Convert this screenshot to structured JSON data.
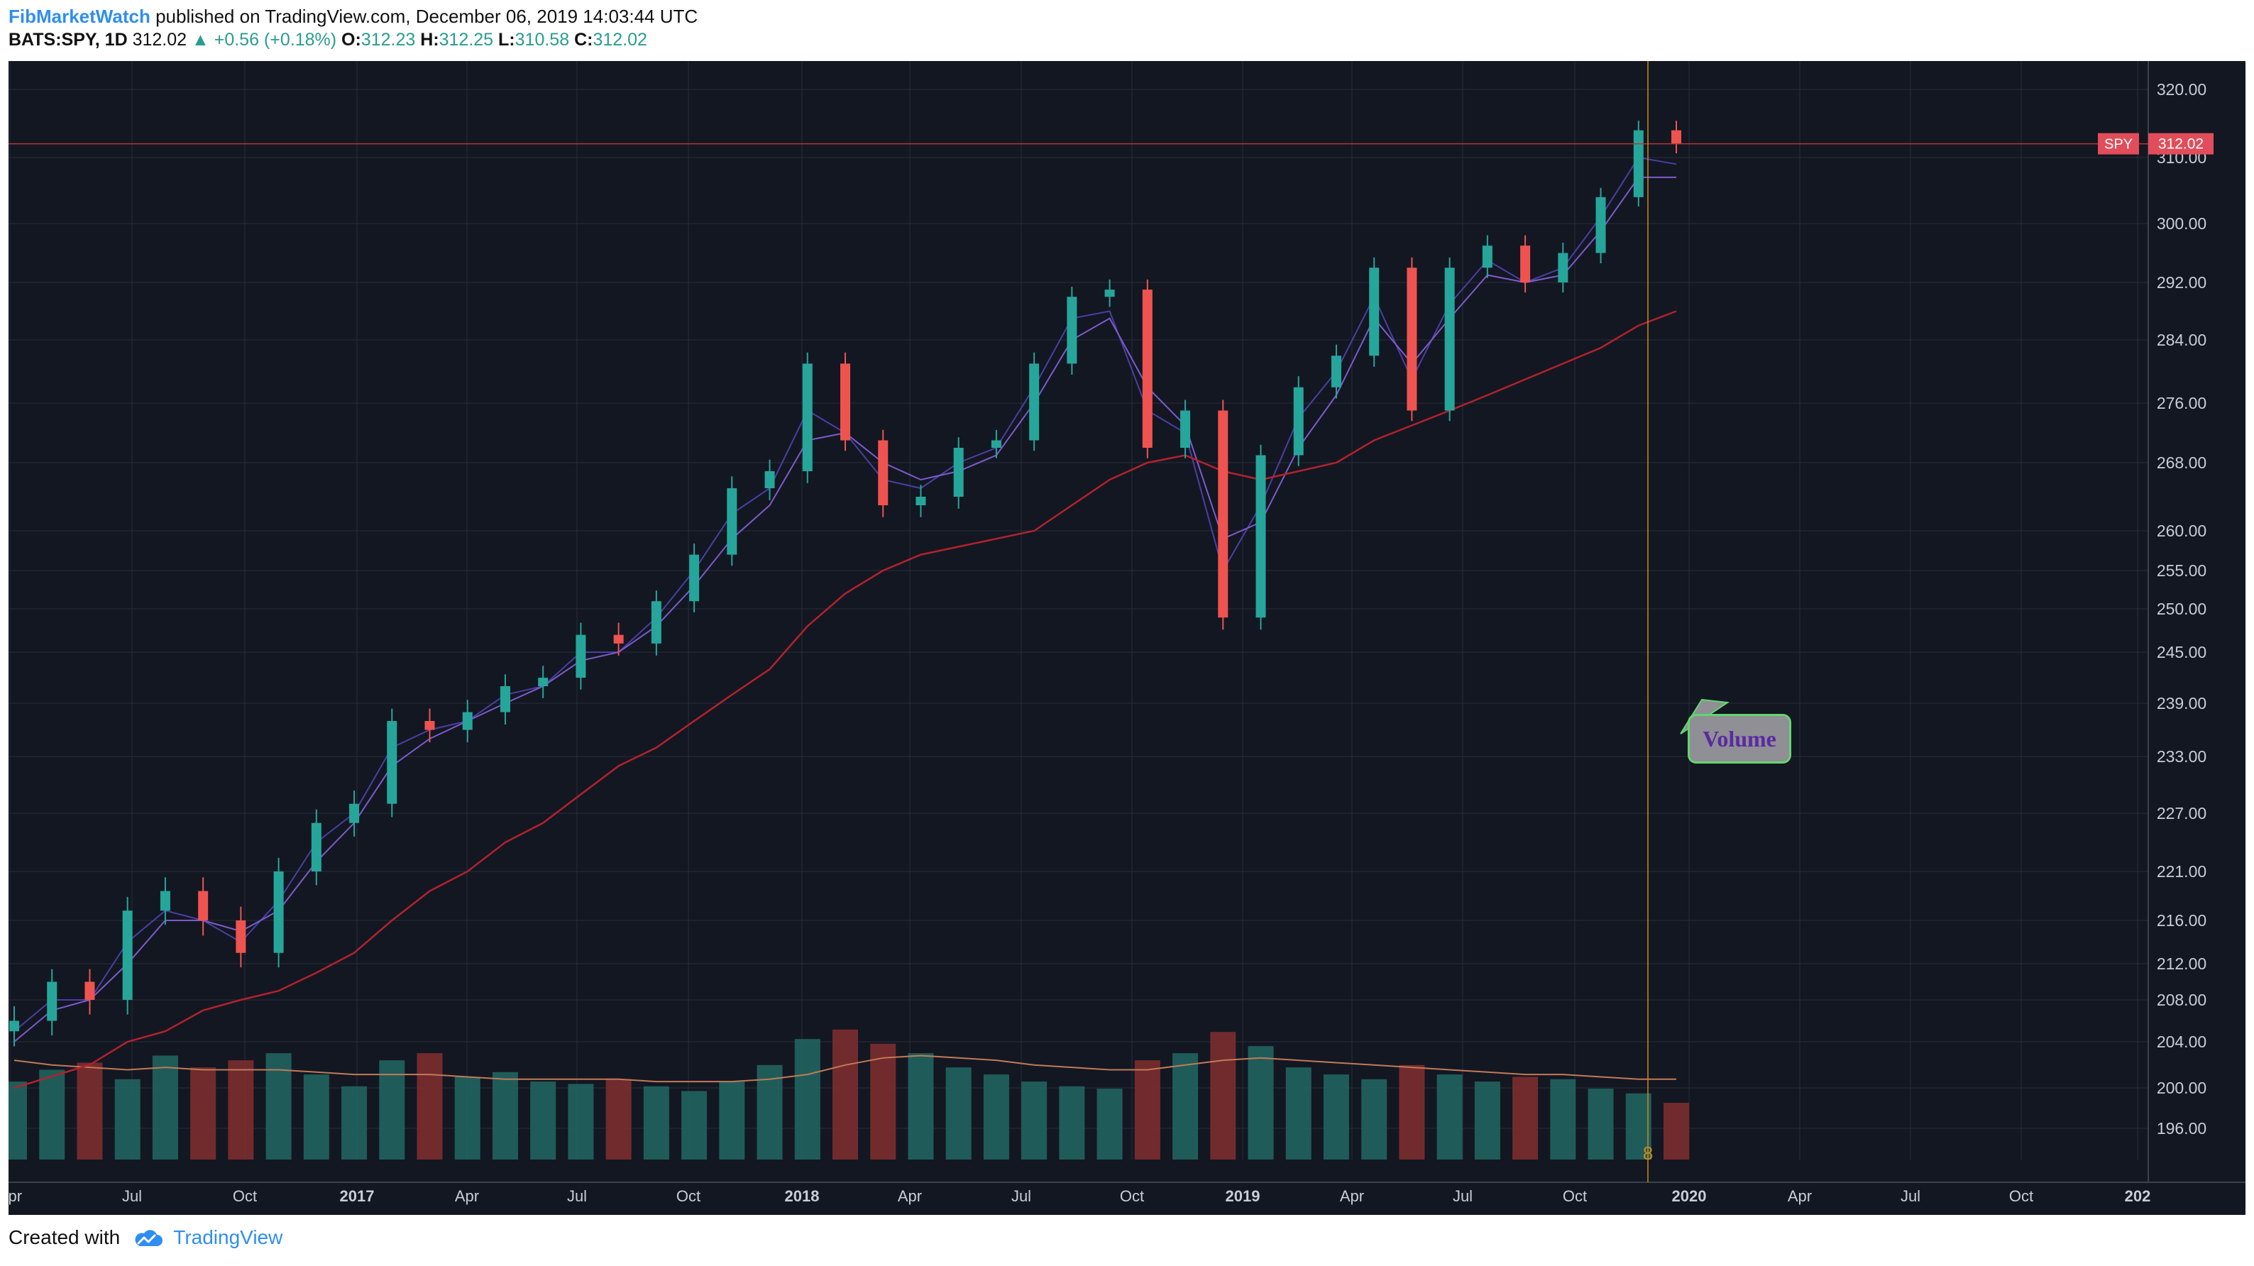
{
  "header": {
    "publisher": "FibMarketWatch",
    "published_text": "published on TradingView.com, December 06, 2019 14:03:44 UTC",
    "symbol": "BATS:SPY, 1D",
    "price": "312.02",
    "change": "+0.56 (+0.18%)",
    "o_label": "O:",
    "o_value": "312.23",
    "h_label": "H:",
    "h_value": "312.25",
    "l_label": "L:",
    "l_value": "310.58",
    "c_label": "C:",
    "c_value": "312.02"
  },
  "chart_data": {
    "type": "line",
    "title": "",
    "symbol_tag": "SPY",
    "last_price_tag": "312.02",
    "x": [
      "2016-04",
      "2016-07",
      "2016-10",
      "2017-01",
      "2017-04",
      "2017-07",
      "2017-10",
      "2018-01",
      "2018-04",
      "2018-07",
      "2018-10",
      "2019-01",
      "2019-04",
      "2019-07",
      "2019-10",
      "2019-12"
    ],
    "y_ticks": [
      320,
      310,
      300,
      292,
      284,
      276,
      268,
      260,
      255,
      250,
      245,
      239,
      233,
      227,
      221,
      216,
      212,
      208,
      204,
      200,
      196
    ],
    "y_tick_labels": [
      "320.00",
      "310.00",
      "300.00",
      "292.00",
      "284.00",
      "276.00",
      "268.00",
      "260.00",
      "255.00",
      "250.00",
      "245.00",
      "239.00",
      "233.00",
      "227.00",
      "221.00",
      "216.00",
      "212.00",
      "208.00",
      "204.00",
      "200.00",
      "196.00"
    ],
    "x_tick_labels": [
      "Apr",
      "Jul",
      "Oct",
      "2017",
      "Apr",
      "Jul",
      "Oct",
      "2018",
      "Apr",
      "Jul",
      "Oct",
      "2019",
      "Apr",
      "Jul",
      "Oct",
      "2020",
      "Apr",
      "Jul",
      "Oct",
      "202"
    ],
    "price_series": [
      {
        "x": "2016-04",
        "close": 206
      },
      {
        "x": "2016-05",
        "close": 210
      },
      {
        "x": "2016-06",
        "close": 208
      },
      {
        "x": "2016-07",
        "close": 217
      },
      {
        "x": "2016-08",
        "close": 219
      },
      {
        "x": "2016-09",
        "close": 216
      },
      {
        "x": "2016-10",
        "close": 213
      },
      {
        "x": "2016-11",
        "close": 221
      },
      {
        "x": "2016-12",
        "close": 226
      },
      {
        "x": "2017-01",
        "close": 228
      },
      {
        "x": "2017-02",
        "close": 237
      },
      {
        "x": "2017-03",
        "close": 236
      },
      {
        "x": "2017-04",
        "close": 238
      },
      {
        "x": "2017-05",
        "close": 241
      },
      {
        "x": "2017-06",
        "close": 242
      },
      {
        "x": "2017-07",
        "close": 247
      },
      {
        "x": "2017-08",
        "close": 246
      },
      {
        "x": "2017-09",
        "close": 251
      },
      {
        "x": "2017-10",
        "close": 257
      },
      {
        "x": "2017-11",
        "close": 265
      },
      {
        "x": "2017-12",
        "close": 267
      },
      {
        "x": "2018-01",
        "close": 281
      },
      {
        "x": "2018-02",
        "close": 271
      },
      {
        "x": "2018-03",
        "close": 263
      },
      {
        "x": "2018-04",
        "close": 264
      },
      {
        "x": "2018-05",
        "close": 270
      },
      {
        "x": "2018-06",
        "close": 271
      },
      {
        "x": "2018-07",
        "close": 281
      },
      {
        "x": "2018-08",
        "close": 290
      },
      {
        "x": "2018-09",
        "close": 291
      },
      {
        "x": "2018-10",
        "close": 270
      },
      {
        "x": "2018-11",
        "close": 275
      },
      {
        "x": "2018-12",
        "close": 249
      },
      {
        "x": "2019-01",
        "close": 269
      },
      {
        "x": "2019-02",
        "close": 278
      },
      {
        "x": "2019-03",
        "close": 282
      },
      {
        "x": "2019-04",
        "close": 294
      },
      {
        "x": "2019-05",
        "close": 275
      },
      {
        "x": "2019-06",
        "close": 294
      },
      {
        "x": "2019-07",
        "close": 297
      },
      {
        "x": "2019-08",
        "close": 292
      },
      {
        "x": "2019-09",
        "close": 296
      },
      {
        "x": "2019-10",
        "close": 304
      },
      {
        "x": "2019-11",
        "close": 314
      },
      {
        "x": "2019-12",
        "close": 312.02
      }
    ],
    "ma_series": [
      {
        "name": "",
        "color": "#4b3fa3",
        "values": [
          205,
          208,
          208,
          214,
          217,
          216,
          214,
          218,
          224,
          227,
          234,
          236,
          237,
          240,
          241,
          245,
          245,
          249,
          255,
          262,
          265,
          275,
          272,
          266,
          265,
          268,
          270,
          278,
          287,
          288,
          275,
          272,
          255,
          263,
          274,
          280,
          290,
          279,
          289,
          295,
          292,
          294,
          301,
          310,
          309
        ]
      },
      {
        "name": "",
        "color": "#7d5bcc",
        "values": [
          204,
          207,
          208,
          212,
          216,
          216,
          215,
          217,
          222,
          226,
          232,
          235,
          237,
          239,
          241,
          244,
          245,
          248,
          253,
          259,
          263,
          271,
          272,
          268,
          266,
          267,
          269,
          276,
          284,
          287,
          278,
          273,
          259,
          261,
          270,
          277,
          287,
          281,
          287,
          293,
          292,
          293,
          299,
          307,
          307
        ]
      },
      {
        "name": "",
        "color": "#b3222c",
        "values": [
          200,
          201,
          202,
          204,
          205,
          207,
          208,
          209,
          211,
          213,
          216,
          219,
          221,
          224,
          226,
          229,
          232,
          234,
          237,
          240,
          243,
          248,
          252,
          255,
          257,
          258,
          259,
          260,
          263,
          266,
          268,
          269,
          267,
          266,
          267,
          268,
          271,
          273,
          275,
          277,
          279,
          281,
          283,
          286,
          288
        ]
      }
    ],
    "volume_relative": [
      0.33,
      0.38,
      0.41,
      0.34,
      0.44,
      0.39,
      0.42,
      0.45,
      0.36,
      0.31,
      0.42,
      0.45,
      0.35,
      0.37,
      0.33,
      0.32,
      0.34,
      0.31,
      0.29,
      0.33,
      0.4,
      0.51,
      0.55,
      0.49,
      0.45,
      0.39,
      0.36,
      0.33,
      0.31,
      0.3,
      0.42,
      0.45,
      0.54,
      0.48,
      0.39,
      0.36,
      0.34,
      0.4,
      0.36,
      0.33,
      0.35,
      0.34,
      0.3,
      0.28,
      0.24
    ],
    "volume_ma_relative": [
      0.42,
      0.4,
      0.39,
      0.38,
      0.39,
      0.38,
      0.38,
      0.38,
      0.37,
      0.36,
      0.36,
      0.36,
      0.35,
      0.34,
      0.34,
      0.34,
      0.34,
      0.33,
      0.33,
      0.33,
      0.34,
      0.36,
      0.4,
      0.43,
      0.44,
      0.43,
      0.42,
      0.4,
      0.39,
      0.38,
      0.38,
      0.4,
      0.42,
      0.43,
      0.42,
      0.41,
      0.4,
      0.39,
      0.38,
      0.37,
      0.36,
      0.36,
      0.35,
      0.34,
      0.34
    ],
    "annotation_text": "Volume",
    "marker_text": "8",
    "colors": {
      "background": "#131722",
      "grid": "#2a2e39",
      "price_up": "#26a69a",
      "price_down": "#ef5350",
      "volume_up": "#21645f",
      "volume_down": "#7c2d2f",
      "current_line": "#b23a3a",
      "cursor_line": "#c58b1a",
      "tag": "#e14d5a",
      "annotation_border": "#63d66e",
      "annotation_text": "#5b2aa0",
      "volume_ma": "#c27a57"
    }
  },
  "footer": {
    "created_with": "Created with",
    "tradingview": "TradingView"
  }
}
